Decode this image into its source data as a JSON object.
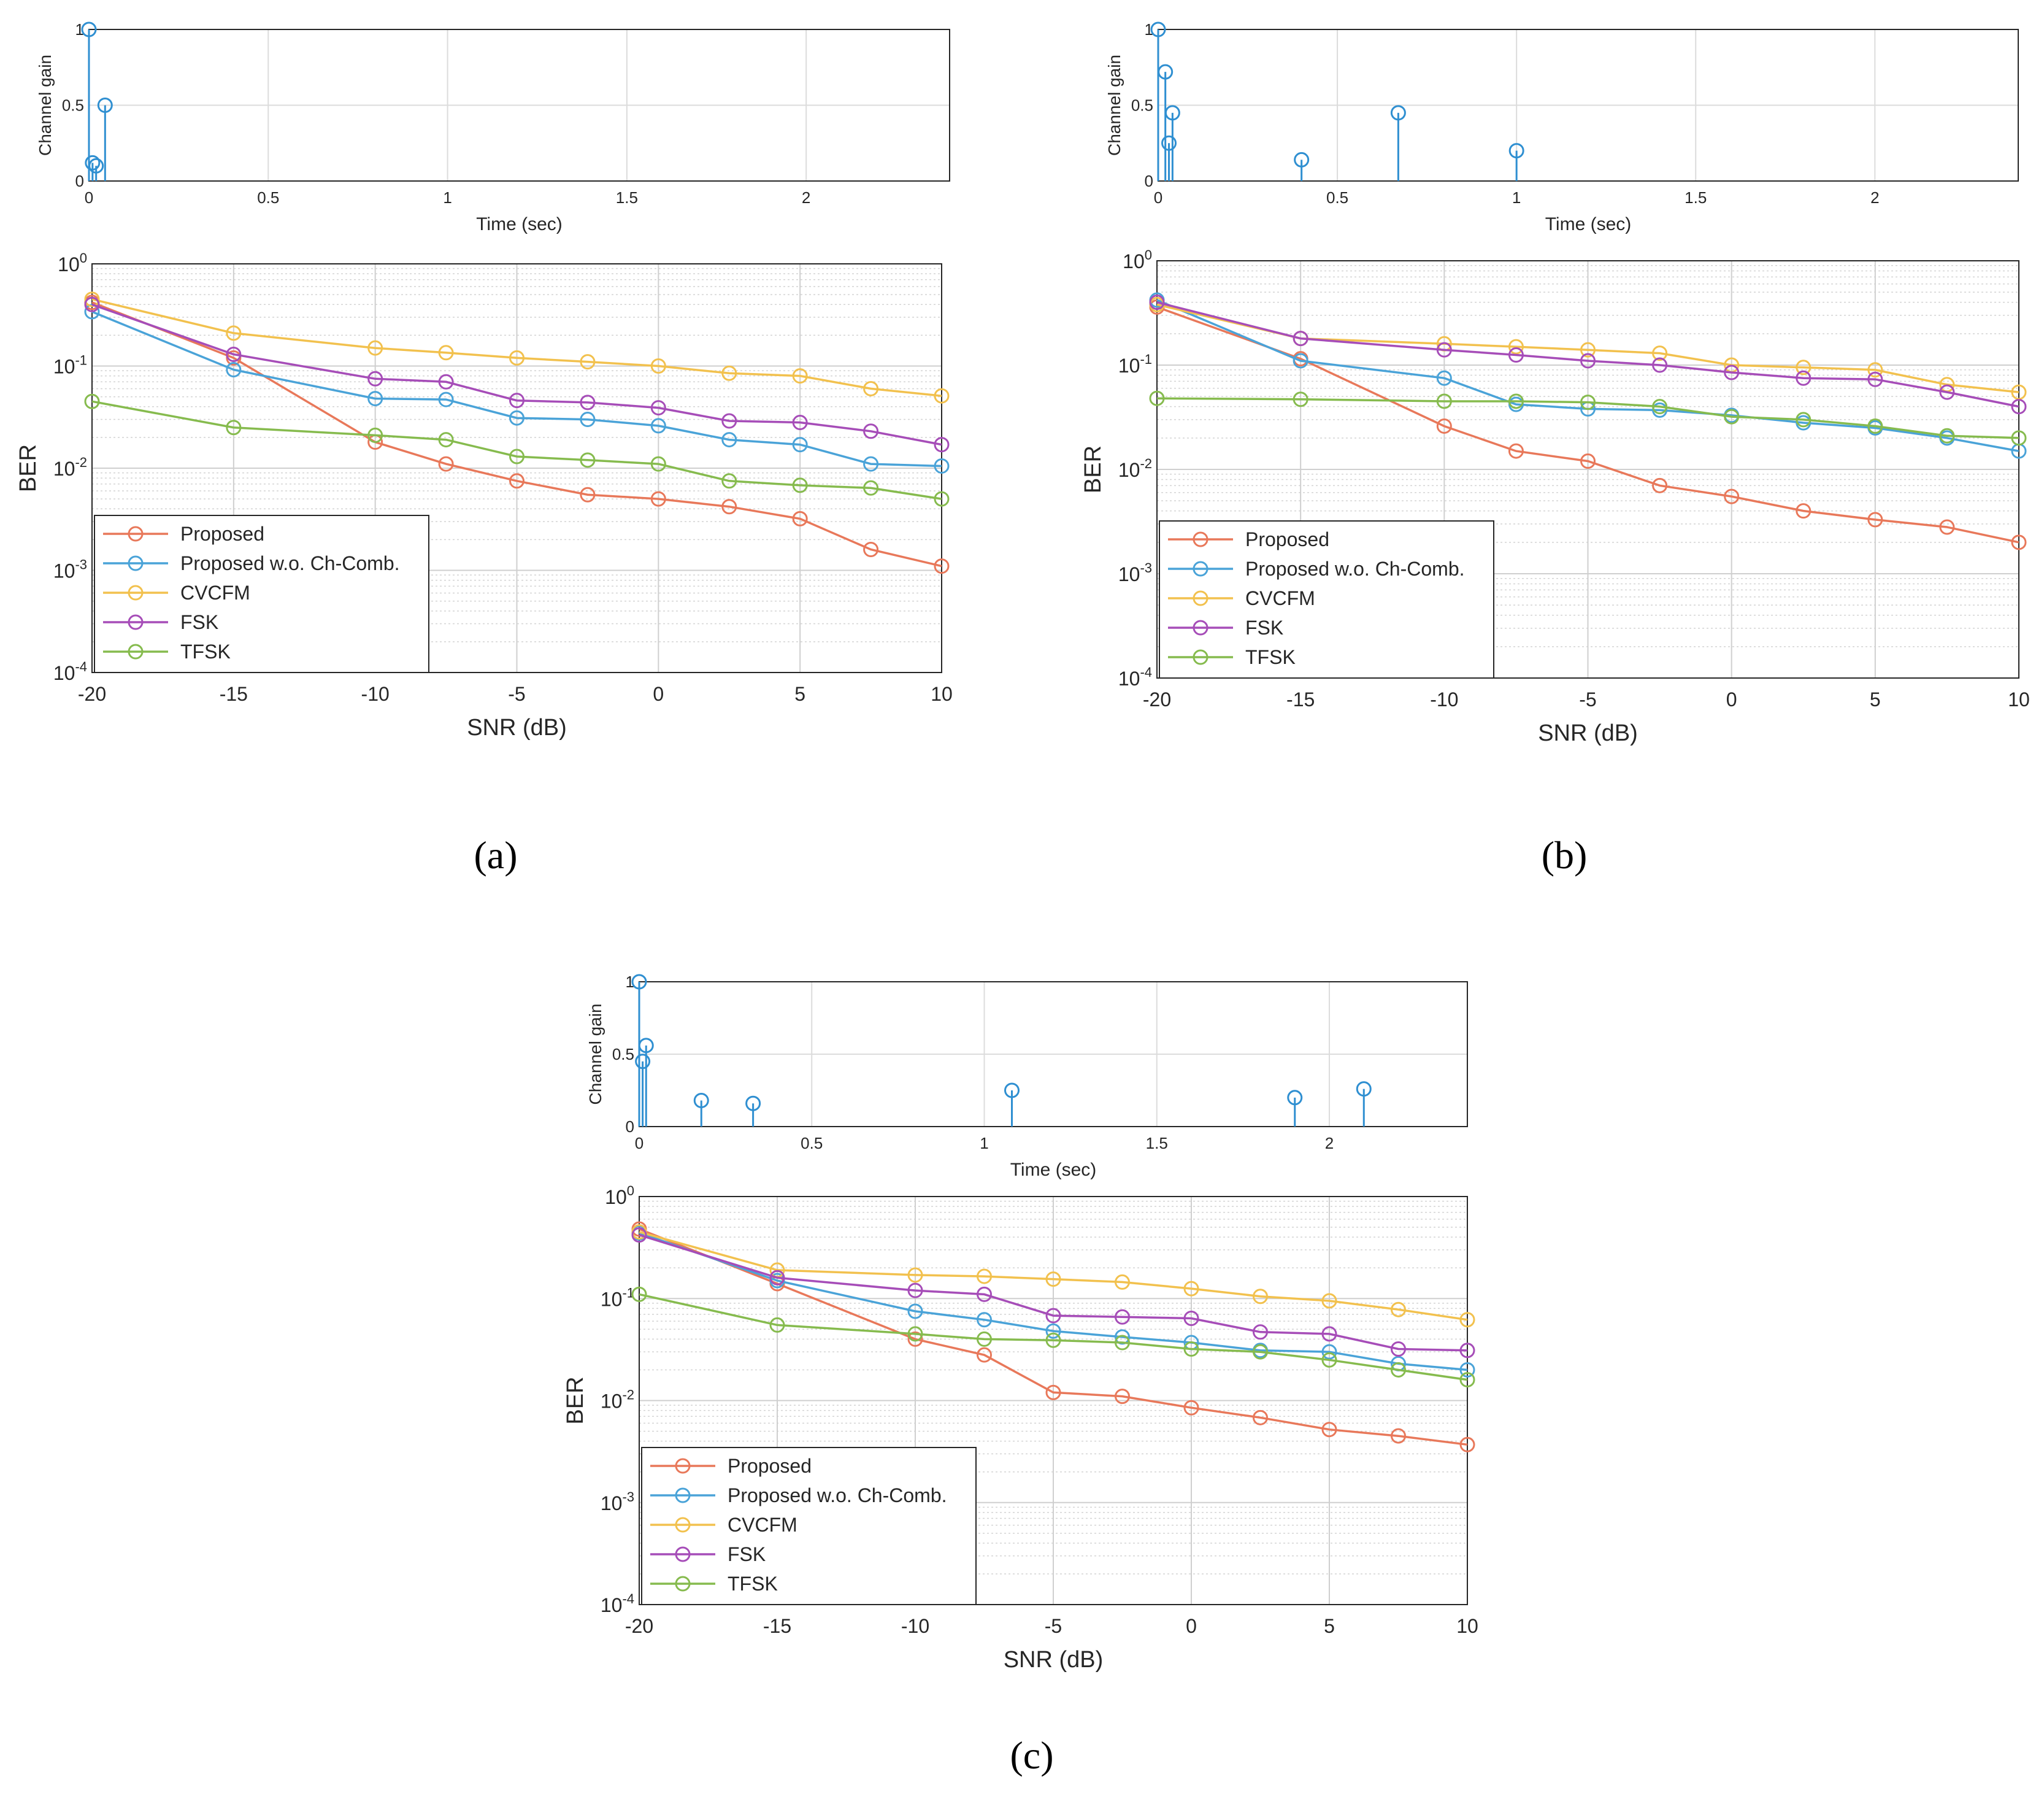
{
  "chart_data": [
    {
      "panel": "a",
      "caption": "(a)",
      "impulse": {
        "type": "stem",
        "ylabel": "Channel gain",
        "xlabel": "Time (sec)",
        "xlim": [
          0,
          2.4
        ],
        "ylim": [
          0,
          1
        ],
        "xticks": [
          "0",
          "0.5",
          "1",
          "1.5",
          "2"
        ],
        "yticks": [
          "0",
          "0.5",
          "1"
        ],
        "points": [
          [
            0.0,
            1.0
          ],
          [
            0.01,
            0.12
          ],
          [
            0.02,
            0.1
          ],
          [
            0.045,
            0.5
          ]
        ]
      },
      "ber": {
        "type": "line",
        "xlabel": "SNR (dB)",
        "ylabel": "BER",
        "xticks": [
          "-20",
          "-15",
          "-10",
          "-5",
          "0",
          "5",
          "10"
        ],
        "ylim": [
          0.0001,
          1
        ],
        "legend_loc": "bottom-left",
        "x": [
          -20,
          -15,
          -10,
          -7.5,
          -5,
          -2.5,
          0,
          2.5,
          5,
          7.5,
          10
        ],
        "series": [
          {
            "name": "Proposed",
            "color": "#e8785a",
            "values": [
              0.42,
              0.12,
              0.018,
              0.011,
              0.0075,
              0.0055,
              0.005,
              0.0042,
              0.0032,
              0.0016,
              0.0011
            ]
          },
          {
            "name": "Proposed w.o. Ch-Comb.",
            "color": "#4aa3d8",
            "values": [
              0.34,
              0.092,
              0.048,
              0.047,
              0.031,
              0.03,
              0.026,
              0.019,
              0.017,
              0.011,
              0.0105
            ]
          },
          {
            "name": "CVCFM",
            "color": "#f2c14e",
            "values": [
              0.45,
              0.21,
              0.15,
              0.135,
              0.12,
              0.11,
              0.1,
              0.085,
              0.08,
              0.06,
              0.051
            ]
          },
          {
            "name": "FSK",
            "color": "#a64db8",
            "values": [
              0.4,
              0.13,
              0.075,
              0.07,
              0.046,
              0.044,
              0.039,
              0.029,
              0.028,
              0.023,
              0.017
            ]
          },
          {
            "name": "TFSK",
            "color": "#86bb4e",
            "values": [
              0.045,
              0.025,
              0.021,
              0.019,
              0.013,
              0.012,
              0.011,
              0.0075,
              0.0068,
              0.0064,
              0.005
            ]
          }
        ]
      }
    },
    {
      "panel": "b",
      "caption": "(b)",
      "impulse": {
        "type": "stem",
        "ylabel": "Channel gain",
        "xlabel": "Time (sec)",
        "xlim": [
          0,
          2.4
        ],
        "ylim": [
          0,
          1
        ],
        "xticks": [
          "0",
          "0.5",
          "1",
          "1.5",
          "2"
        ],
        "yticks": [
          "0",
          "0.5",
          "1"
        ],
        "points": [
          [
            0.0,
            1.0
          ],
          [
            0.02,
            0.72
          ],
          [
            0.03,
            0.25
          ],
          [
            0.04,
            0.45
          ],
          [
            0.4,
            0.14
          ],
          [
            0.67,
            0.45
          ],
          [
            1.0,
            0.2
          ]
        ]
      },
      "ber": {
        "type": "line",
        "xlabel": "SNR (dB)",
        "ylabel": "BER",
        "xticks": [
          "-20",
          "-15",
          "-10",
          "-5",
          "0",
          "5",
          "10"
        ],
        "ylim": [
          0.0001,
          1
        ],
        "legend_loc": "bottom-left",
        "x": [
          -20,
          -15,
          -10,
          -7.5,
          -5,
          -2.5,
          0,
          2.5,
          5,
          7.5,
          10
        ],
        "series": [
          {
            "name": "Proposed",
            "color": "#e8785a",
            "values": [
              0.36,
              0.115,
              0.026,
              0.015,
              0.012,
              0.007,
              0.0055,
              0.004,
              0.0033,
              0.0028,
              0.002
            ]
          },
          {
            "name": "Proposed w.o. Ch-Comb.",
            "color": "#4aa3d8",
            "values": [
              0.42,
              0.11,
              0.075,
              0.042,
              0.038,
              0.037,
              0.033,
              0.028,
              0.025,
              0.02,
              0.015
            ]
          },
          {
            "name": "CVCFM",
            "color": "#f2c14e",
            "values": [
              0.38,
              0.18,
              0.16,
              0.15,
              0.14,
              0.13,
              0.1,
              0.095,
              0.09,
              0.065,
              0.055
            ]
          },
          {
            "name": "FSK",
            "color": "#a64db8",
            "values": [
              0.4,
              0.18,
              0.14,
              0.125,
              0.11,
              0.1,
              0.085,
              0.075,
              0.073,
              0.055,
              0.04
            ]
          },
          {
            "name": "TFSK",
            "color": "#86bb4e",
            "values": [
              0.048,
              0.047,
              0.045,
              0.045,
              0.044,
              0.04,
              0.032,
              0.03,
              0.026,
              0.021,
              0.02
            ]
          }
        ]
      }
    },
    {
      "panel": "c",
      "caption": "(c)",
      "impulse": {
        "type": "stem",
        "ylabel": "Channel gain",
        "xlabel": "Time (sec)",
        "xlim": [
          0,
          2.4
        ],
        "ylim": [
          0,
          1
        ],
        "xticks": [
          "0",
          "0.5",
          "1",
          "1.5",
          "2"
        ],
        "yticks": [
          "0",
          "0.5",
          "1"
        ],
        "points": [
          [
            0.0,
            1.0
          ],
          [
            0.01,
            0.45
          ],
          [
            0.02,
            0.56
          ],
          [
            0.18,
            0.18
          ],
          [
            0.33,
            0.16
          ],
          [
            1.08,
            0.25
          ],
          [
            1.9,
            0.2
          ],
          [
            2.1,
            0.26
          ]
        ]
      },
      "ber": {
        "type": "line",
        "xlabel": "SNR (dB)",
        "ylabel": "BER",
        "xticks": [
          "-20",
          "-15",
          "-10",
          "-5",
          "0",
          "5",
          "10"
        ],
        "ylim": [
          0.0001,
          1
        ],
        "legend_loc": "bottom-left",
        "x": [
          -20,
          -15,
          -10,
          -7.5,
          -5,
          -2.5,
          0,
          2.5,
          5,
          7.5,
          10
        ],
        "series": [
          {
            "name": "Proposed",
            "color": "#e8785a",
            "values": [
              0.48,
              0.14,
              0.04,
              0.028,
              0.012,
              0.011,
              0.0085,
              0.0068,
              0.0052,
              0.0045,
              0.0037
            ]
          },
          {
            "name": "Proposed w.o. Ch-Comb.",
            "color": "#4aa3d8",
            "values": [
              0.44,
              0.15,
              0.075,
              0.062,
              0.048,
              0.042,
              0.037,
              0.031,
              0.03,
              0.023,
              0.02
            ]
          },
          {
            "name": "CVCFM",
            "color": "#f2c14e",
            "values": [
              0.45,
              0.19,
              0.17,
              0.165,
              0.155,
              0.145,
              0.125,
              0.105,
              0.095,
              0.078,
              0.062
            ]
          },
          {
            "name": "FSK",
            "color": "#a64db8",
            "values": [
              0.42,
              0.16,
              0.12,
              0.11,
              0.068,
              0.066,
              0.064,
              0.047,
              0.045,
              0.032,
              0.031
            ]
          },
          {
            "name": "TFSK",
            "color": "#86bb4e",
            "values": [
              0.11,
              0.055,
              0.045,
              0.04,
              0.039,
              0.037,
              0.032,
              0.03,
              0.025,
              0.02,
              0.016
            ]
          }
        ]
      }
    }
  ]
}
